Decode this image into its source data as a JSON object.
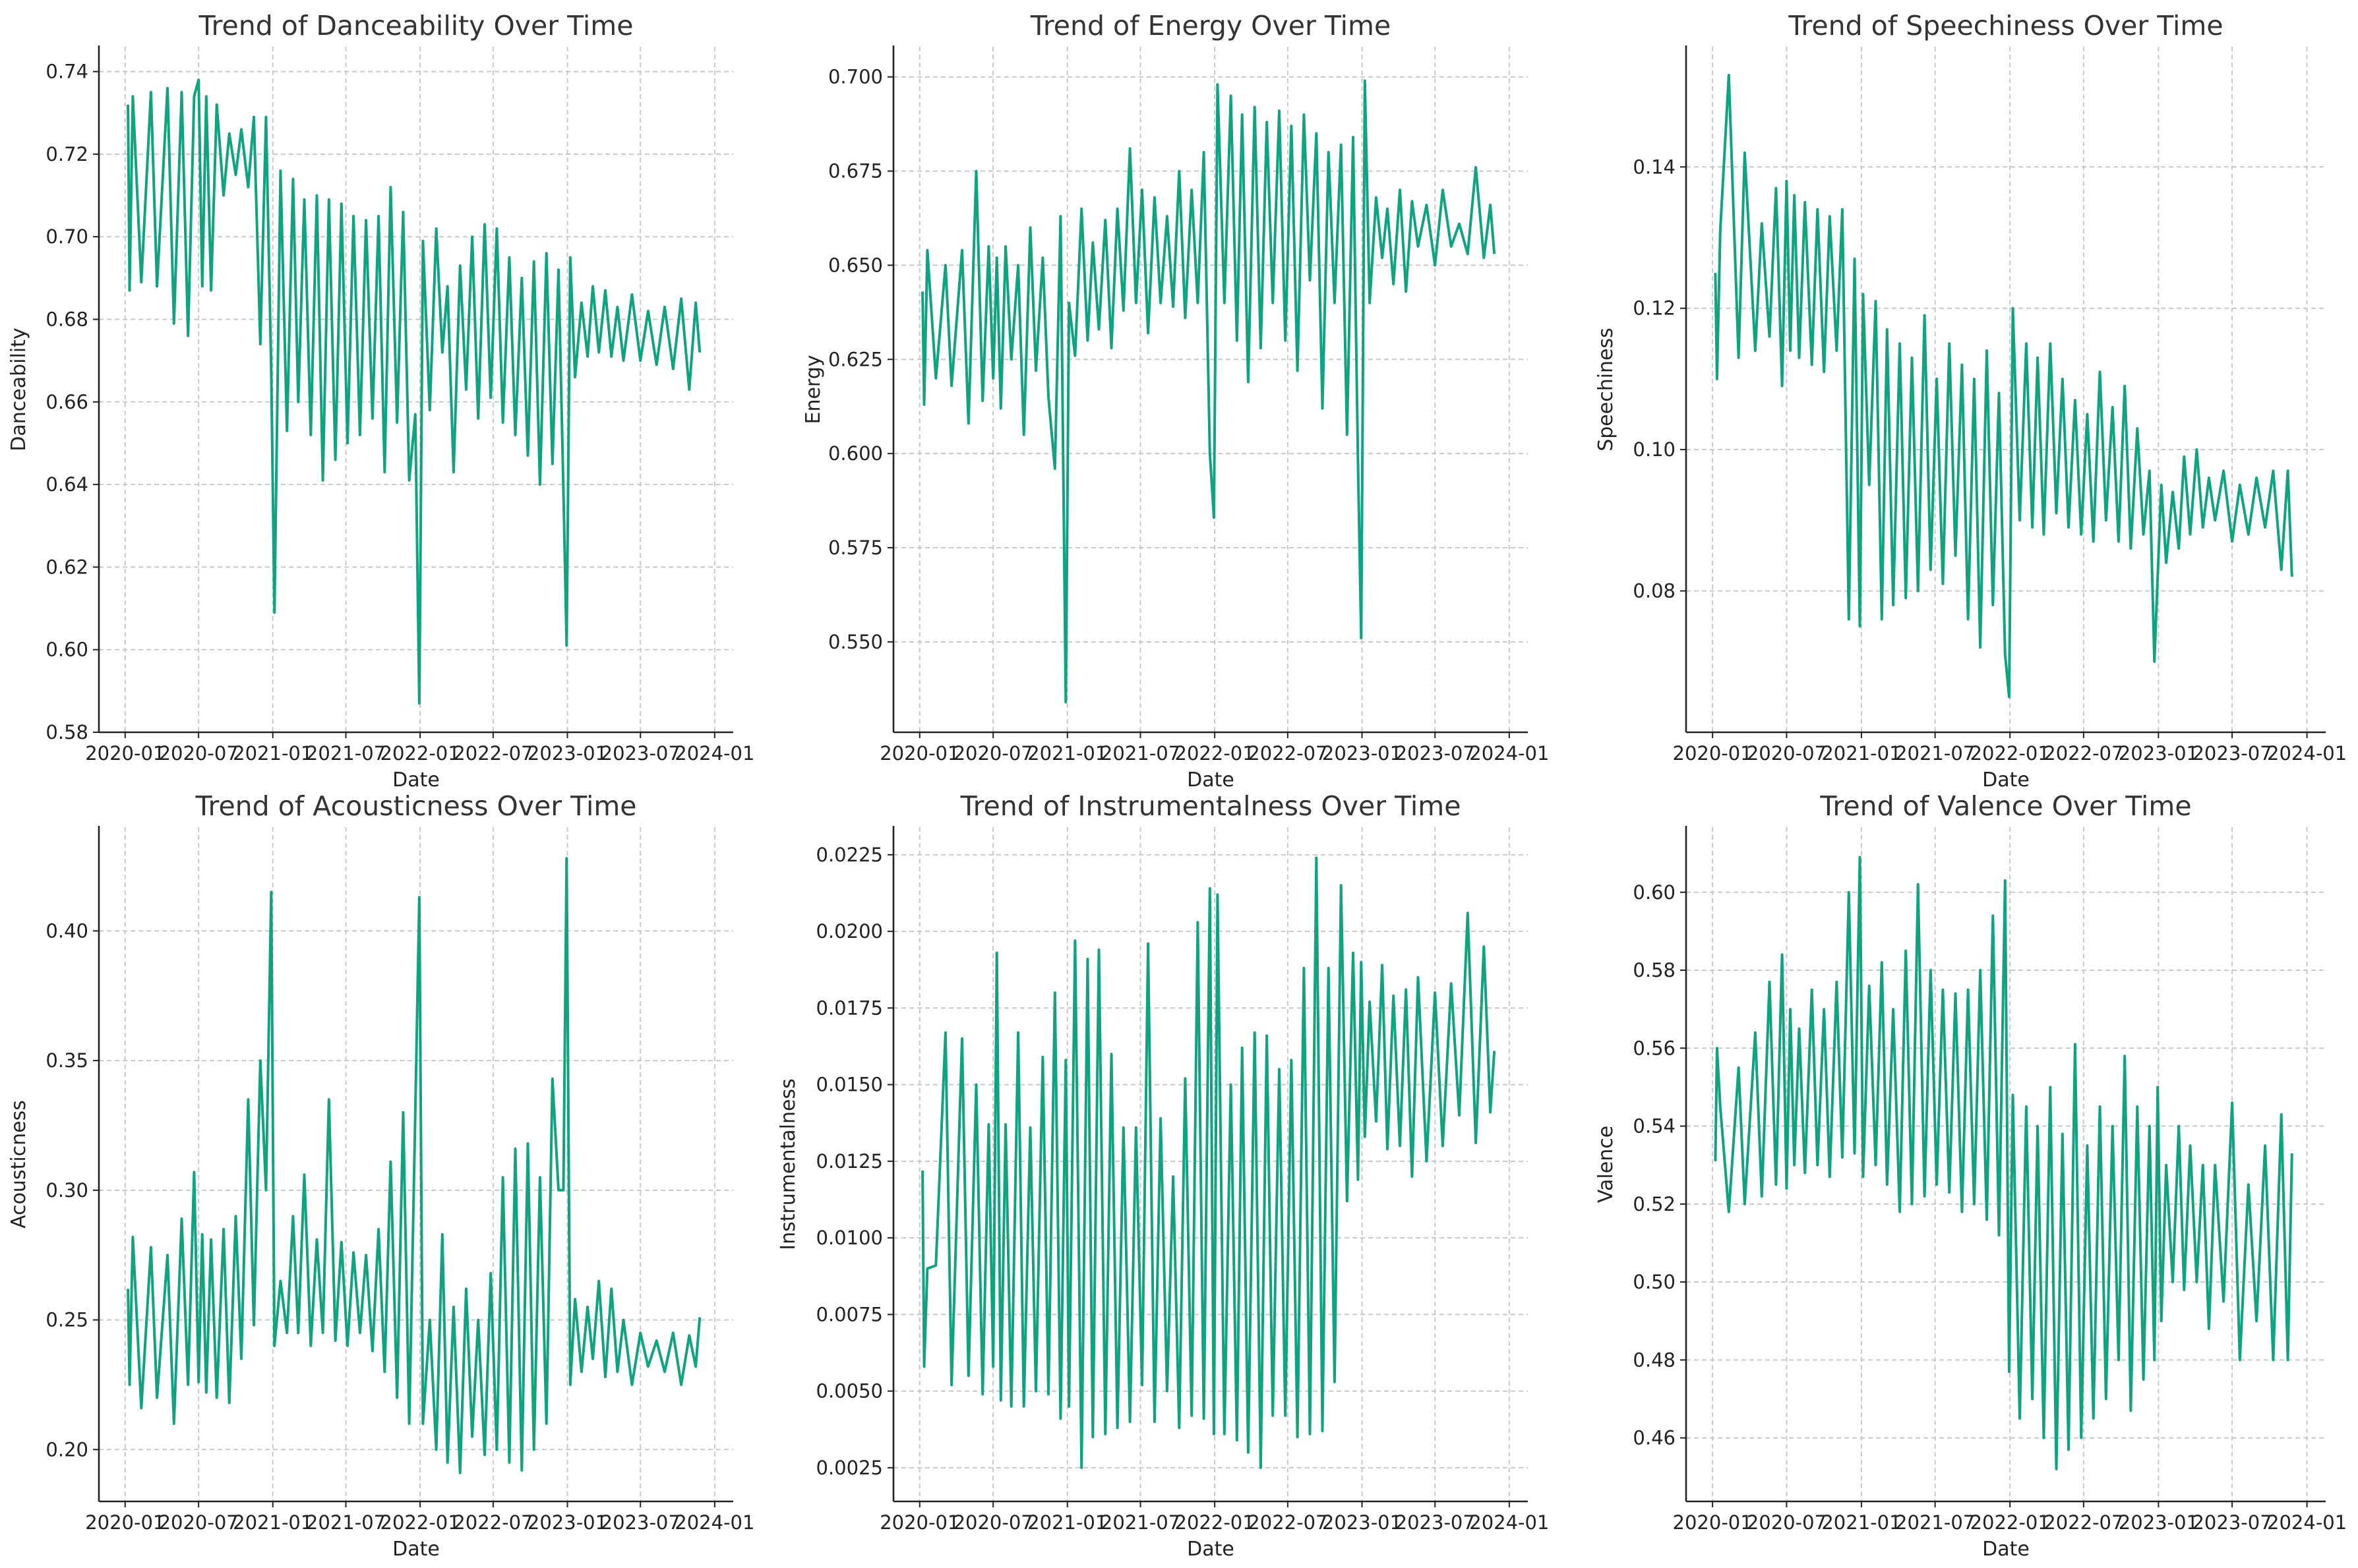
{
  "chart_data": [
    {
      "type": "line",
      "title": "Trend of Danceability Over Time",
      "xlabel": "Date",
      "ylabel": "Danceability",
      "ylim": [
        0.58,
        0.746
      ],
      "yticks": [
        0.58,
        0.6,
        0.62,
        0.64,
        0.66,
        0.68,
        0.7,
        0.72,
        0.74
      ],
      "ytick_labels": [
        "0.58",
        "0.60",
        "0.62",
        "0.64",
        "0.66",
        "0.68",
        "0.70",
        "0.72",
        "0.74"
      ],
      "series": [
        {
          "name": "danceability",
          "values": [
            0.732,
            0.687,
            0.734,
            0.689,
            0.735,
            0.688,
            0.736,
            0.679,
            0.735,
            0.676,
            0.734,
            0.738,
            0.688,
            0.734,
            0.687,
            0.732,
            0.71,
            0.725,
            0.715,
            0.726,
            0.712,
            0.729,
            0.674,
            0.729,
            0.668,
            0.609,
            0.716,
            0.653,
            0.714,
            0.66,
            0.709,
            0.652,
            0.71,
            0.641,
            0.709,
            0.646,
            0.708,
            0.65,
            0.705,
            0.652,
            0.704,
            0.656,
            0.705,
            0.643,
            0.712,
            0.655,
            0.706,
            0.641,
            0.657,
            0.587,
            0.699,
            0.658,
            0.702,
            0.672,
            0.688,
            0.643,
            0.693,
            0.663,
            0.7,
            0.656,
            0.703,
            0.661,
            0.702,
            0.655,
            0.695,
            0.652,
            0.69,
            0.647,
            0.694,
            0.64,
            0.696,
            0.645,
            0.692,
            0.639,
            0.601,
            0.695,
            0.666,
            0.684,
            0.671,
            0.688,
            0.672,
            0.687,
            0.671,
            0.683,
            0.67,
            0.686,
            0.67,
            0.682,
            0.669,
            0.683,
            0.668,
            0.685,
            0.663,
            0.684,
            0.672
          ]
        }
      ]
    },
    {
      "type": "line",
      "title": "Trend of Energy Over Time",
      "xlabel": "Date",
      "ylabel": "Energy",
      "ylim": [
        0.526,
        0.708
      ],
      "yticks": [
        0.55,
        0.575,
        0.6,
        0.625,
        0.65,
        0.675,
        0.7
      ],
      "ytick_labels": [
        "0.550",
        "0.575",
        "0.600",
        "0.625",
        "0.650",
        "0.675",
        "0.700"
      ],
      "series": [
        {
          "name": "energy",
          "values": [
            0.643,
            0.613,
            0.654,
            0.62,
            0.65,
            0.618,
            0.654,
            0.608,
            0.675,
            0.614,
            0.655,
            0.62,
            0.652,
            0.612,
            0.655,
            0.625,
            0.65,
            0.605,
            0.66,
            0.622,
            0.652,
            0.615,
            0.596,
            0.663,
            0.534,
            0.64,
            0.626,
            0.665,
            0.63,
            0.656,
            0.633,
            0.662,
            0.628,
            0.665,
            0.638,
            0.681,
            0.64,
            0.67,
            0.632,
            0.668,
            0.64,
            0.663,
            0.639,
            0.675,
            0.636,
            0.67,
            0.64,
            0.68,
            0.6,
            0.583,
            0.698,
            0.64,
            0.695,
            0.63,
            0.69,
            0.619,
            0.692,
            0.628,
            0.688,
            0.64,
            0.691,
            0.63,
            0.687,
            0.622,
            0.69,
            0.646,
            0.685,
            0.612,
            0.68,
            0.64,
            0.682,
            0.605,
            0.684,
            0.598,
            0.551,
            0.699,
            0.64,
            0.668,
            0.652,
            0.665,
            0.645,
            0.67,
            0.643,
            0.667,
            0.655,
            0.666,
            0.65,
            0.67,
            0.655,
            0.661,
            0.653,
            0.676,
            0.652,
            0.666,
            0.653
          ]
        }
      ]
    },
    {
      "type": "line",
      "title": "Trend of Speechiness Over Time",
      "xlabel": "Date",
      "ylabel": "Speechiness",
      "ylim": [
        0.06,
        0.157
      ],
      "yticks": [
        0.08,
        0.1,
        0.12,
        0.14
      ],
      "ytick_labels": [
        "0.08",
        "0.10",
        "0.12",
        "0.14"
      ],
      "series": [
        {
          "name": "speechiness",
          "values": [
            0.125,
            0.11,
            0.131,
            0.153,
            0.113,
            0.142,
            0.114,
            0.132,
            0.116,
            0.137,
            0.109,
            0.138,
            0.114,
            0.136,
            0.113,
            0.135,
            0.112,
            0.134,
            0.111,
            0.133,
            0.114,
            0.134,
            0.076,
            0.127,
            0.075,
            0.122,
            0.095,
            0.121,
            0.076,
            0.117,
            0.078,
            0.115,
            0.079,
            0.113,
            0.08,
            0.119,
            0.083,
            0.11,
            0.081,
            0.115,
            0.085,
            0.112,
            0.076,
            0.11,
            0.072,
            0.114,
            0.078,
            0.108,
            0.071,
            0.065,
            0.12,
            0.09,
            0.115,
            0.089,
            0.113,
            0.088,
            0.115,
            0.091,
            0.11,
            0.089,
            0.107,
            0.088,
            0.105,
            0.087,
            0.111,
            0.09,
            0.106,
            0.087,
            0.109,
            0.086,
            0.103,
            0.088,
            0.097,
            0.07,
            0.082,
            0.095,
            0.084,
            0.094,
            0.086,
            0.099,
            0.088,
            0.1,
            0.089,
            0.096,
            0.09,
            0.097,
            0.087,
            0.095,
            0.088,
            0.096,
            0.089,
            0.097,
            0.083,
            0.097,
            0.082
          ]
        }
      ]
    },
    {
      "type": "line",
      "title": "Trend of Acousticness Over Time",
      "xlabel": "Date",
      "ylabel": "Acousticness",
      "ylim": [
        0.18,
        0.44
      ],
      "yticks": [
        0.2,
        0.25,
        0.3,
        0.35,
        0.4
      ],
      "ytick_labels": [
        "0.20",
        "0.25",
        "0.30",
        "0.35",
        "0.40"
      ],
      "series": [
        {
          "name": "acousticness",
          "values": [
            0.262,
            0.225,
            0.282,
            0.216,
            0.278,
            0.22,
            0.275,
            0.21,
            0.289,
            0.225,
            0.307,
            0.226,
            0.283,
            0.222,
            0.281,
            0.22,
            0.285,
            0.218,
            0.29,
            0.235,
            0.335,
            0.248,
            0.35,
            0.3,
            0.415,
            0.24,
            0.265,
            0.245,
            0.29,
            0.245,
            0.306,
            0.24,
            0.281,
            0.245,
            0.335,
            0.242,
            0.28,
            0.24,
            0.276,
            0.245,
            0.275,
            0.238,
            0.285,
            0.23,
            0.311,
            0.22,
            0.33,
            0.21,
            0.33,
            0.413,
            0.21,
            0.25,
            0.2,
            0.283,
            0.195,
            0.255,
            0.191,
            0.262,
            0.205,
            0.25,
            0.198,
            0.268,
            0.2,
            0.305,
            0.195,
            0.316,
            0.192,
            0.318,
            0.2,
            0.305,
            0.21,
            0.343,
            0.3,
            0.3,
            0.428,
            0.225,
            0.258,
            0.23,
            0.255,
            0.235,
            0.265,
            0.228,
            0.262,
            0.23,
            0.25,
            0.225,
            0.245,
            0.232,
            0.242,
            0.23,
            0.245,
            0.225,
            0.244,
            0.232,
            0.251
          ]
        }
      ]
    },
    {
      "type": "line",
      "title": "Trend of Instrumentalness Over Time",
      "xlabel": "Date",
      "ylabel": "Instrumentalness",
      "ylim": [
        0.0014,
        0.0234
      ],
      "yticks": [
        0.0025,
        0.005,
        0.0075,
        0.01,
        0.0125,
        0.015,
        0.0175,
        0.02,
        0.0225
      ],
      "ytick_labels": [
        "0.0025",
        "0.0050",
        "0.0075",
        "0.0100",
        "0.0125",
        "0.0150",
        "0.0175",
        "0.0200",
        "0.0225"
      ],
      "series": [
        {
          "name": "instrumentalness",
          "values": [
            0.0122,
            0.0058,
            0.009,
            0.0091,
            0.0167,
            0.0052,
            0.0165,
            0.0055,
            0.015,
            0.0049,
            0.0137,
            0.0058,
            0.0193,
            0.0047,
            0.0137,
            0.0045,
            0.0167,
            0.0045,
            0.0136,
            0.005,
            0.0159,
            0.0049,
            0.018,
            0.0041,
            0.0158,
            0.0045,
            0.0197,
            0.0025,
            0.0191,
            0.0035,
            0.0194,
            0.0036,
            0.016,
            0.0038,
            0.0136,
            0.004,
            0.0136,
            0.0052,
            0.0196,
            0.004,
            0.0139,
            0.005,
            0.012,
            0.0038,
            0.0152,
            0.0042,
            0.0203,
            0.0041,
            0.0214,
            0.0036,
            0.0212,
            0.0036,
            0.015,
            0.0034,
            0.0162,
            0.003,
            0.0167,
            0.0025,
            0.0166,
            0.0042,
            0.0155,
            0.0042,
            0.0158,
            0.0035,
            0.0188,
            0.0036,
            0.0224,
            0.0037,
            0.0188,
            0.0053,
            0.0215,
            0.0112,
            0.0193,
            0.0119,
            0.019,
            0.0133,
            0.0177,
            0.0138,
            0.0189,
            0.0129,
            0.0179,
            0.013,
            0.0181,
            0.012,
            0.0185,
            0.0125,
            0.018,
            0.013,
            0.0183,
            0.014,
            0.0206,
            0.0131,
            0.0195,
            0.0141,
            0.0161
          ]
        }
      ]
    },
    {
      "type": "line",
      "title": "Trend of Valence Over Time",
      "xlabel": "Date",
      "ylabel": "Valence",
      "ylim": [
        0.4437,
        0.6167
      ],
      "yticks": [
        0.46,
        0.48,
        0.5,
        0.52,
        0.54,
        0.56,
        0.58,
        0.6
      ],
      "ytick_labels": [
        "0.46",
        "0.48",
        "0.50",
        "0.52",
        "0.54",
        "0.56",
        "0.58",
        "0.60"
      ],
      "series": [
        {
          "name": "valence",
          "values": [
            0.531,
            0.56,
            0.545,
            0.518,
            0.555,
            0.52,
            0.564,
            0.522,
            0.577,
            0.525,
            0.584,
            0.524,
            0.57,
            0.53,
            0.565,
            0.528,
            0.575,
            0.53,
            0.57,
            0.527,
            0.577,
            0.532,
            0.6,
            0.533,
            0.609,
            0.527,
            0.576,
            0.53,
            0.582,
            0.525,
            0.57,
            0.518,
            0.585,
            0.52,
            0.602,
            0.522,
            0.58,
            0.525,
            0.575,
            0.523,
            0.574,
            0.518,
            0.575,
            0.52,
            0.58,
            0.516,
            0.594,
            0.512,
            0.603,
            0.477,
            0.548,
            0.465,
            0.545,
            0.47,
            0.54,
            0.46,
            0.55,
            0.452,
            0.538,
            0.457,
            0.561,
            0.46,
            0.535,
            0.465,
            0.545,
            0.47,
            0.54,
            0.48,
            0.558,
            0.467,
            0.545,
            0.475,
            0.54,
            0.48,
            0.55,
            0.49,
            0.53,
            0.5,
            0.54,
            0.498,
            0.535,
            0.5,
            0.53,
            0.488,
            0.53,
            0.495,
            0.546,
            0.48,
            0.525,
            0.49,
            0.535,
            0.48,
            0.543,
            0.48,
            0.533
          ]
        }
      ]
    }
  ],
  "shared_x": {
    "xlim": [
      "2019-10-28",
      "2024-02-16"
    ],
    "xticks": [
      "2020-01-01",
      "2020-07-01",
      "2021-01-01",
      "2021-07-01",
      "2022-01-01",
      "2022-07-01",
      "2023-01-01",
      "2023-07-01",
      "2024-01-01"
    ],
    "xtick_labels": [
      "2020-01",
      "2020-07",
      "2021-01",
      "2021-07",
      "2022-01",
      "2022-07",
      "2023-01",
      "2023-07",
      "2024-01"
    ],
    "dates": [
      "2020-01-08",
      "2020-01-12",
      "2020-01-20",
      "2020-02-10",
      "2020-03-05",
      "2020-03-20",
      "2020-04-15",
      "2020-05-01",
      "2020-05-20",
      "2020-06-05",
      "2020-06-20",
      "2020-07-01",
      "2020-07-10",
      "2020-07-20",
      "2020-08-01",
      "2020-08-15",
      "2020-09-01",
      "2020-09-15",
      "2020-10-01",
      "2020-10-15",
      "2020-11-01",
      "2020-11-15",
      "2020-12-01",
      "2020-12-15",
      "2020-12-28",
      "2021-01-05",
      "2021-01-20",
      "2021-02-05",
      "2021-02-20",
      "2021-03-05",
      "2021-03-20",
      "2021-04-05",
      "2021-04-20",
      "2021-05-05",
      "2021-05-20",
      "2021-06-05",
      "2021-06-20",
      "2021-07-05",
      "2021-07-20",
      "2021-08-05",
      "2021-08-20",
      "2021-09-05",
      "2021-09-20",
      "2021-10-05",
      "2021-10-20",
      "2021-11-05",
      "2021-11-20",
      "2021-12-05",
      "2021-12-20",
      "2021-12-30",
      "2022-01-08",
      "2022-01-25",
      "2022-02-10",
      "2022-02-25",
      "2022-03-10",
      "2022-03-25",
      "2022-04-10",
      "2022-04-25",
      "2022-05-10",
      "2022-05-25",
      "2022-06-10",
      "2022-06-25",
      "2022-07-10",
      "2022-07-25",
      "2022-08-10",
      "2022-08-25",
      "2022-09-10",
      "2022-09-25",
      "2022-10-10",
      "2022-10-25",
      "2022-11-10",
      "2022-11-25",
      "2022-12-10",
      "2022-12-22",
      "2022-12-30",
      "2023-01-08",
      "2023-01-20",
      "2023-02-05",
      "2023-02-20",
      "2023-03-05",
      "2023-03-20",
      "2023-04-05",
      "2023-04-20",
      "2023-05-05",
      "2023-05-20",
      "2023-06-10",
      "2023-07-01",
      "2023-07-20",
      "2023-08-10",
      "2023-08-30",
      "2023-09-20",
      "2023-10-10",
      "2023-10-30",
      "2023-11-15",
      "2023-11-25"
    ]
  },
  "colors": {
    "line": "#10a37f",
    "grid": "#c8c8c8",
    "axis": "#222222"
  }
}
